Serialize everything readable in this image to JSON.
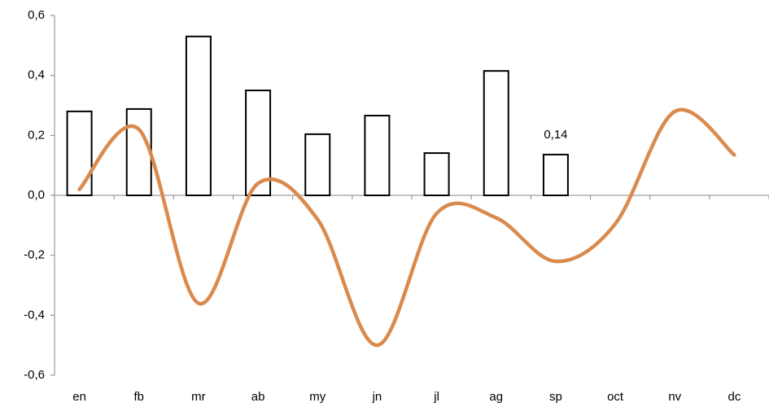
{
  "chart_data": {
    "type": "combo",
    "categories": [
      "en",
      "fb",
      "mr",
      "ab",
      "my",
      "jn",
      "jl",
      "ag",
      "sp",
      "oct",
      "nv",
      "dc"
    ],
    "series": [
      {
        "type": "bar",
        "color": "#ffffff",
        "values": [
          0.28,
          0.288,
          0.53,
          0.35,
          0.204,
          0.266,
          0.141,
          0.415,
          0.136,
          null,
          null,
          null
        ],
        "value_labels": [
          null,
          null,
          null,
          null,
          null,
          null,
          null,
          null,
          "0,14",
          null,
          null,
          null
        ]
      },
      {
        "type": "line",
        "color": "#d98b4f",
        "values": [
          0.02,
          0.22,
          -0.36,
          0.04,
          -0.08,
          -0.5,
          -0.06,
          -0.075,
          -0.22,
          -0.095,
          0.28,
          0.135
        ]
      }
    ],
    "ylim": [
      -0.6,
      0.6
    ],
    "yticks": [
      {
        "value": -0.6,
        "label": "-0,6"
      },
      {
        "value": -0.4,
        "label": "-0,4"
      },
      {
        "value": -0.2,
        "label": "-0,2"
      },
      {
        "value": 0,
        "label": "0,0"
      },
      {
        "value": 0.2,
        "label": "0,2"
      },
      {
        "value": 0.4,
        "label": "0,4"
      },
      {
        "value": 0.6,
        "label": "0,6"
      }
    ]
  }
}
